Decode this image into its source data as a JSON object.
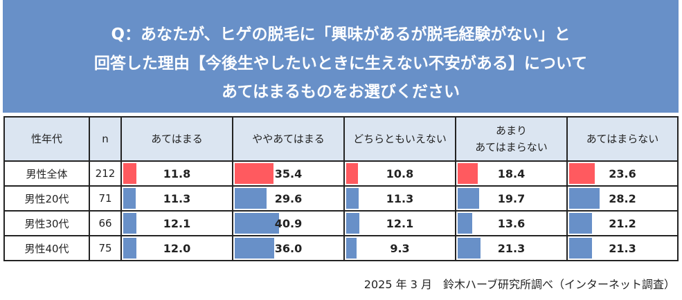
{
  "title_lines": [
    "Q：あなたが、ヒゲの脱毛に「興味があるが脱毛経験がない」と",
    "回答した理由【今後生やしたいときに生えない不安がある】について",
    "あてはまるものをお選びください"
  ],
  "colors": {
    "header_bg": "#6890c8",
    "total_bar": "#ff5a5f",
    "group_bar": "#6890c8"
  },
  "chart_data": {
    "type": "table",
    "columns": [
      "性年代",
      "n",
      "あてはまる",
      "ややあてはまる",
      "どちらともいえない",
      "あまり\nあてはまらない",
      "あてはまらない"
    ],
    "rows": [
      {
        "label": "男性全体",
        "n": "212",
        "values": [
          "11.8",
          "35.4",
          "10.8",
          "18.4",
          "23.6"
        ]
      },
      {
        "label": "男性20代",
        "n": "71",
        "values": [
          "11.3",
          "29.6",
          "11.3",
          "19.7",
          "28.2"
        ]
      },
      {
        "label": "男性30代",
        "n": "66",
        "values": [
          "12.1",
          "40.9",
          "12.1",
          "13.6",
          "21.2"
        ]
      },
      {
        "label": "男性40代",
        "n": "75",
        "values": [
          "12.0",
          "36.0",
          "9.3",
          "21.3",
          "21.3"
        ]
      }
    ]
  },
  "footer": "2025 年 3 月　鈴木ハーブ研究所調べ（インターネット調査）"
}
